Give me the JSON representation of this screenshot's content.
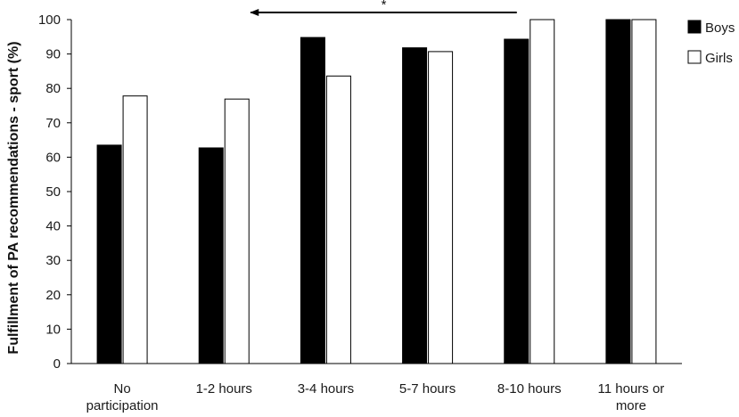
{
  "chart_data": {
    "type": "bar",
    "ylabel": "Fulfillment of PA recommendations - sport (%)",
    "xlabel": "",
    "ylim": [
      0,
      100
    ],
    "yticks": [
      "0",
      "10",
      "20",
      "30",
      "40",
      "50",
      "60",
      "70",
      "80",
      "90",
      "100"
    ],
    "categories": [
      [
        "No",
        "participation"
      ],
      [
        "1-2 hours"
      ],
      [
        "3-4 hours"
      ],
      [
        "5-7 hours"
      ],
      [
        "8-10 hours"
      ],
      [
        "11 hours or",
        "more"
      ]
    ],
    "series": [
      {
        "name": "Boys",
        "color": "#000000",
        "values": [
          63.5,
          62.7,
          94.8,
          91.8,
          94.3,
          100
        ]
      },
      {
        "name": "Girls",
        "color": "#ffffff",
        "values": [
          77.8,
          76.9,
          83.6,
          90.7,
          100,
          100
        ]
      }
    ],
    "legend_position": "top-right",
    "grid": false,
    "annotation": {
      "text": "*",
      "type": "arrow",
      "from_category": "8-10 hours",
      "to_category": "1-2 hours"
    }
  }
}
